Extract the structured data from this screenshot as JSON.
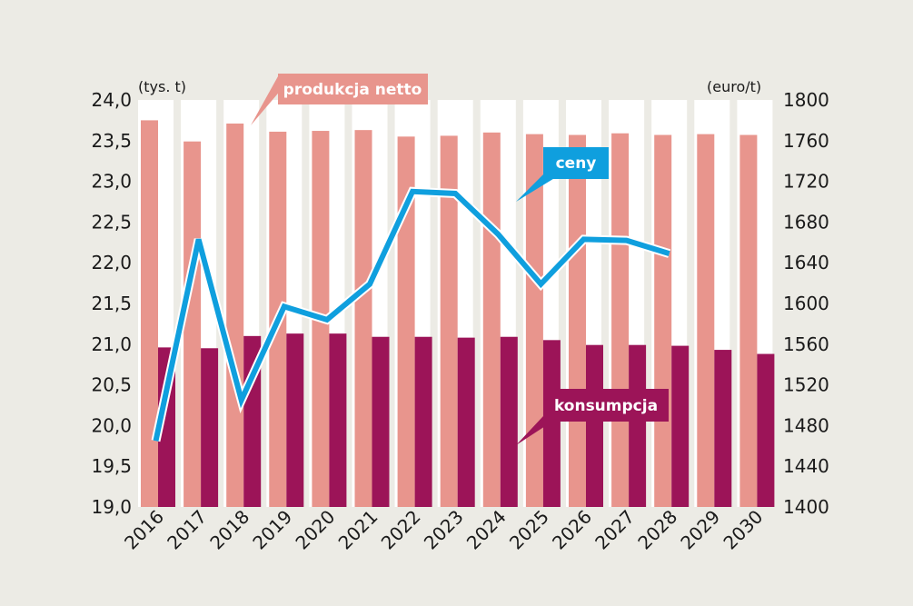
{
  "chart_data": {
    "type": "bar",
    "categories": [
      "2016",
      "2017",
      "2018",
      "2019",
      "2020",
      "2021",
      "2022",
      "2023",
      "2024",
      "2025",
      "2026",
      "2027",
      "2028",
      "2029",
      "2030"
    ],
    "series": [
      {
        "name": "produkcja netto",
        "kind": "bar",
        "axis": "left",
        "values": [
          23.75,
          23.49,
          23.71,
          23.61,
          23.62,
          23.63,
          23.55,
          23.56,
          23.6,
          23.58,
          23.57,
          23.59,
          23.57,
          23.58,
          23.57
        ]
      },
      {
        "name": "konsumpcja",
        "kind": "bar",
        "axis": "left",
        "values": [
          20.96,
          20.95,
          21.1,
          21.13,
          21.13,
          21.09,
          21.09,
          21.08,
          21.09,
          21.05,
          20.99,
          20.99,
          20.98,
          20.93,
          20.88
        ]
      },
      {
        "name": "ceny",
        "kind": "line",
        "axis": "right",
        "values": [
          1465,
          1663,
          1505,
          1597,
          1584,
          1619,
          1710,
          1708,
          1668,
          1619,
          1663,
          1662,
          1649,
          null,
          null
        ]
      }
    ],
    "ylabel_left": "(tys. t)",
    "ylabel_right": "(euro/t)",
    "ylim_left": [
      19.0,
      24.0
    ],
    "ylim_right": [
      1400,
      1800
    ],
    "yticks_left": [
      "24,0",
      "23,5",
      "23,0",
      "22,5",
      "22,0",
      "21,5",
      "21,0",
      "20,5",
      "20,0",
      "19,5",
      "19,0"
    ],
    "yticks_right": [
      "1800",
      "1760",
      "1720",
      "1680",
      "1640",
      "1600",
      "1560",
      "1520",
      "1480",
      "1440",
      "1400"
    ],
    "grid": false,
    "colors": {
      "produkcja": "#e8958d",
      "konsumpcja": "#9c1458",
      "ceny": "#0f9fde",
      "callout_produkcja": "#e8958d",
      "callout_ceny": "#0f9fde",
      "callout_konsumpcja": "#9c1458",
      "background": "#ecebe5",
      "band": "#ffffff"
    }
  }
}
